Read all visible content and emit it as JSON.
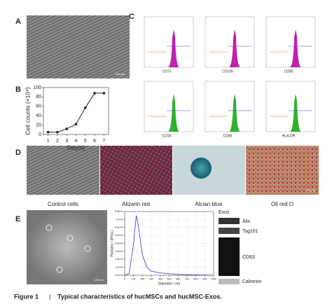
{
  "figure": {
    "panel_labels": [
      "A",
      "B",
      "C",
      "D",
      "E"
    ],
    "panel_a": {
      "scale_bar": "100 μm"
    },
    "panel_b": {
      "type": "line",
      "x": [
        1,
        2,
        3,
        4,
        5,
        6,
        7
      ],
      "values": [
        5,
        5,
        12,
        22,
        57,
        88,
        88
      ],
      "xlim": [
        0.5,
        7.5
      ],
      "xticks": [
        1,
        2,
        3,
        4,
        5,
        6,
        7
      ],
      "ylim": [
        0,
        100
      ],
      "yticks": [
        0,
        20,
        40,
        60,
        80,
        100
      ],
      "xlabel": "Day(s)",
      "ylabel": "Cell counts (×10⁴)",
      "color": "#222222"
    },
    "panel_c": {
      "markers": [
        "CD73",
        "CD105",
        "CD90",
        "CD34",
        "CD45",
        "HLA-DR"
      ]
    },
    "panel_d": {
      "labels": [
        "Control cells",
        "Alizarin red",
        "Alcian blue",
        "Oil red O"
      ],
      "scale_bar": "100 μm"
    },
    "panel_e": {
      "scale_bar": "100 nm",
      "nta": {
        "type": "line",
        "x": [
          0,
          50,
          100,
          130,
          150,
          200,
          250,
          300,
          400,
          500,
          600,
          800,
          1000
        ],
        "values": [
          0,
          200000,
          4000000,
          7500000,
          6500000,
          2500000,
          1000000,
          500000,
          300000,
          200000,
          100000,
          50000,
          0
        ],
        "xlim": [
          0,
          1000
        ],
        "xticks": [
          0,
          100,
          200,
          300,
          400,
          500,
          600,
          700,
          800,
          900,
          1000
        ],
        "ylim": [
          0,
          8000000
        ],
        "yticks": [
          {
            "value": 0,
            "label": "0.0e+0"
          },
          {
            "value": 1000000,
            "label": "1.0e+6"
          },
          {
            "value": 2000000,
            "label": "2.0e+6"
          },
          {
            "value": 3000000,
            "label": "3.0e+6"
          },
          {
            "value": 4000000,
            "label": "4.0e+6"
          },
          {
            "value": 5000000,
            "label": "5.0e+6"
          },
          {
            "value": 6000000,
            "label": "6.0e+6"
          },
          {
            "value": 7000000,
            "label": "7.0e+6"
          },
          {
            "value": 8000000,
            "label": "8.0e+6"
          }
        ],
        "xlabel": "Diameter / nm",
        "ylabel": "Particles / (P/mL)",
        "color": "#3333cc"
      },
      "blot": {
        "title": "Exos",
        "bands": [
          "Alix",
          "Tsg101",
          "CD63",
          "Calnexin"
        ]
      }
    },
    "caption": {
      "number": "Figure 1",
      "separator": "|",
      "title": "Typical characteristics of hucMSCs and hucMSC-Exos."
    }
  }
}
